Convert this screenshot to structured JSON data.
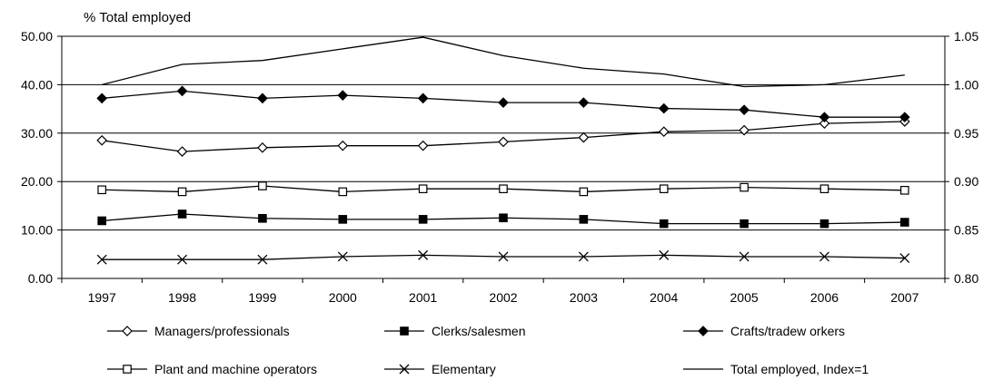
{
  "chart_data": {
    "type": "line",
    "unit_label": "% Total employed",
    "categories": [
      "1997",
      "1998",
      "1999",
      "2000",
      "2001",
      "2002",
      "2003",
      "2004",
      "2005",
      "2006",
      "2007"
    ],
    "y_left": {
      "range": [
        0,
        50
      ],
      "ticks": [
        "0.00",
        "10.00",
        "20.00",
        "30.00",
        "40.00",
        "50.00"
      ],
      "tick_values": [
        0,
        10,
        20,
        30,
        40,
        50
      ]
    },
    "y_right": {
      "range": [
        0.8,
        1.05
      ],
      "ticks": [
        "0.80",
        "0.85",
        "0.90",
        "0.95",
        "1.00",
        "1.05"
      ],
      "tick_values": [
        0.8,
        0.85,
        0.9,
        0.95,
        1.0,
        1.05
      ]
    },
    "gridlines": "horizontal",
    "legend_position": "bottom",
    "series": [
      {
        "name": "Managers/professionals",
        "axis": "left",
        "marker": "diamond-open",
        "values": [
          28.5,
          26.2,
          27.0,
          27.4,
          27.4,
          28.2,
          29.1,
          30.3,
          30.6,
          32.0,
          32.4
        ]
      },
      {
        "name": "Clerks/salesmen",
        "axis": "left",
        "marker": "square-filled",
        "values": [
          11.9,
          13.3,
          12.4,
          12.2,
          12.2,
          12.5,
          12.2,
          11.3,
          11.3,
          11.3,
          11.6
        ]
      },
      {
        "name": "Crafts/tradew orkers",
        "axis": "left",
        "marker": "diamond-filled",
        "values": [
          37.2,
          38.7,
          37.2,
          37.8,
          37.2,
          36.3,
          36.3,
          35.1,
          34.8,
          33.3,
          33.3
        ]
      },
      {
        "name": "Plant and machine operators",
        "axis": "left",
        "marker": "square-open",
        "values": [
          18.3,
          17.9,
          19.1,
          17.9,
          18.5,
          18.5,
          17.9,
          18.5,
          18.8,
          18.5,
          18.2
        ]
      },
      {
        "name": "Elementary",
        "axis": "left",
        "marker": "x",
        "values": [
          3.9,
          3.9,
          3.9,
          4.5,
          4.8,
          4.5,
          4.5,
          4.8,
          4.5,
          4.5,
          4.2
        ]
      },
      {
        "name": "Total employed, Index=1",
        "axis": "right",
        "marker": "none",
        "values": [
          1.0,
          1.021,
          1.025,
          1.037,
          1.049,
          1.03,
          1.017,
          1.011,
          0.998,
          1.0,
          1.01
        ]
      }
    ]
  }
}
